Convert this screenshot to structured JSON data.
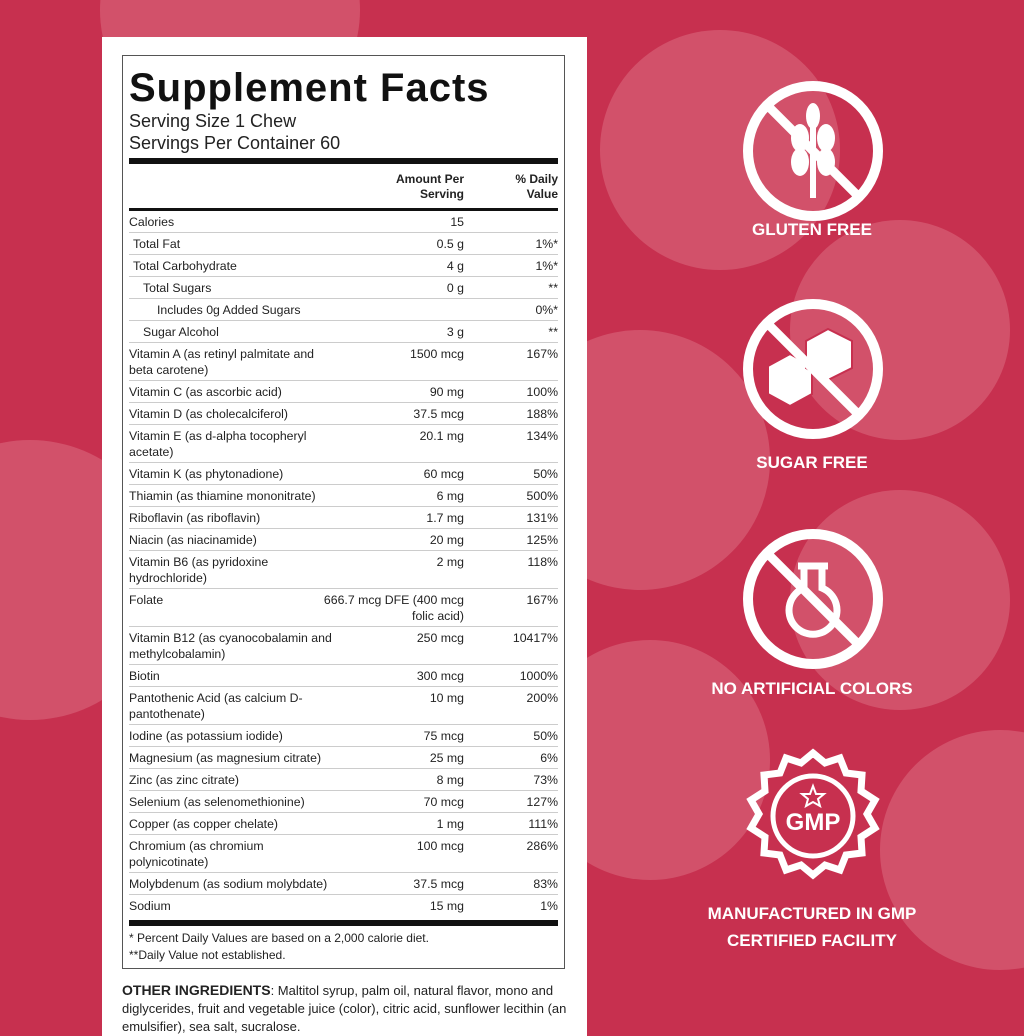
{
  "colors": {
    "background": "#c7304f",
    "panel": "#ffffff",
    "text": "#222222"
  },
  "facts": {
    "title": "Supplement Facts",
    "serving_size": "Serving Size 1 Chew",
    "servings_per_container": "Servings Per Container 60",
    "col_amount": "Amount Per Serving",
    "col_dv": "% Daily Value",
    "rows": [
      {
        "name": "Calories",
        "amount": "15",
        "dv": ""
      },
      {
        "name": "Total Fat",
        "amount": "0.5 g",
        "dv": "1%*"
      },
      {
        "name": "Total Carbohydrate",
        "amount": "4 g",
        "dv": "1%*"
      },
      {
        "name": "Total Sugars",
        "amount": "0 g",
        "dv": "**"
      },
      {
        "name": "Includes 0g Added Sugars",
        "amount": "",
        "dv": "0%*"
      },
      {
        "name": "Sugar Alcohol",
        "amount": "3 g",
        "dv": "**"
      },
      {
        "name": "Vitamin A (as retinyl palmitate and beta carotene)",
        "amount": "1500 mcg",
        "dv": "167%"
      },
      {
        "name": "Vitamin C (as ascorbic acid)",
        "amount": "90 mg",
        "dv": "100%"
      },
      {
        "name": "Vitamin D (as cholecalciferol)",
        "amount": "37.5 mcg",
        "dv": "188%"
      },
      {
        "name": "Vitamin E (as d-alpha tocopheryl acetate)",
        "amount": "20.1 mg",
        "dv": "134%"
      },
      {
        "name": "Vitamin K (as phytonadione)",
        "amount": "60 mcg",
        "dv": "50%"
      },
      {
        "name": "Thiamin (as thiamine mononitrate)",
        "amount": "6 mg",
        "dv": "500%"
      },
      {
        "name": "Riboflavin (as riboflavin)",
        "amount": "1.7 mg",
        "dv": "131%"
      },
      {
        "name": "Niacin (as niacinamide)",
        "amount": "20 mg",
        "dv": "125%"
      },
      {
        "name": "Vitamin B6 (as pyridoxine hydrochloride)",
        "amount": "2 mg",
        "dv": "118%"
      },
      {
        "name": "Folate",
        "amount": "666.7 mcg DFE (400 mcg folic acid)",
        "dv": "167%"
      },
      {
        "name": "Vitamin B12 (as cyanocobalamin and methylcobalamin)",
        "amount": "250 mcg",
        "dv": "10417%"
      },
      {
        "name": "Biotin",
        "amount": "300 mcg",
        "dv": "1000%"
      },
      {
        "name": "Pantothenic Acid (as calcium D-pantothenate)",
        "amount": "10 mg",
        "dv": "200%"
      },
      {
        "name": "Iodine (as potassium iodide)",
        "amount": "75 mcg",
        "dv": "50%"
      },
      {
        "name": "Magnesium (as magnesium citrate)",
        "amount": "25 mg",
        "dv": "6%"
      },
      {
        "name": "Zinc (as zinc citrate)",
        "amount": "8 mg",
        "dv": "73%"
      },
      {
        "name": "Selenium (as selenomethionine)",
        "amount": "70 mcg",
        "dv": "127%"
      },
      {
        "name": "Copper (as copper chelate)",
        "amount": "1 mg",
        "dv": "111%"
      },
      {
        "name": "Chromium (as chromium polynicotinate)",
        "amount": "100 mcg",
        "dv": "286%"
      },
      {
        "name": "Molybdenum (as sodium molybdate)",
        "amount": "37.5 mcg",
        "dv": "83%"
      },
      {
        "name": "Sodium",
        "amount": "15 mg",
        "dv": "1%"
      }
    ],
    "footnote1": "* Percent Daily Values are based on a 2,000 calorie diet.",
    "footnote2": "**Daily Value not established."
  },
  "other_ingredients": {
    "label": "OTHER INGREDIENTS",
    "text": ": Maltitol syrup, palm oil, natural flavor, mono and diglycerides, fruit and vegetable juice (color), citric acid, sunflower lecithin (an emulsifier), sea salt, sucralose."
  },
  "badges": [
    {
      "icon": "no-wheat-icon",
      "label": "GLUTEN FREE"
    },
    {
      "icon": "no-sugar-cubes-icon",
      "label": "SUGAR FREE"
    },
    {
      "icon": "no-flask-icon",
      "label": "NO ARTIFICIAL COLORS"
    },
    {
      "icon": "gmp-seal-icon",
      "label": "MANUFACTURED IN GMP CERTIFIED FACILITY",
      "seal_text": "GMP"
    }
  ]
}
